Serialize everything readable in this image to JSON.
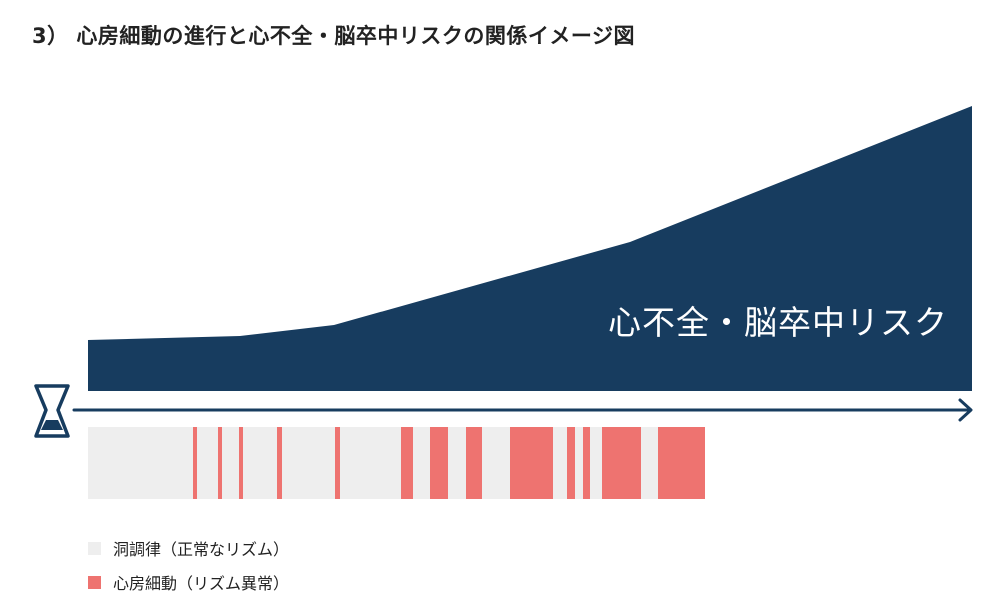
{
  "title": "3） 心房細動の進行と心不全・脳卒中リスクの関係イメージ図",
  "risk_label": "心不全・脳卒中リスク",
  "colors": {
    "risk_area": "#173c5f",
    "sinus": "#eeeeee",
    "af": "#ee7370",
    "arrow": "#173c5f",
    "hourglass": "#173c5f"
  },
  "icons": {
    "time": "hourglass-icon",
    "progression": "arrow-right-icon"
  },
  "rhythm_strip_segments_in_order": [
    "sinus",
    "af",
    "sinus",
    "af",
    "sinus",
    "af",
    "sinus",
    "af",
    "sinus",
    "af",
    "sinus",
    "af",
    "sinus",
    "af",
    "sinus",
    "af",
    "sinus",
    "af",
    "sinus",
    "af",
    "sinus",
    "af",
    "sinus",
    "af",
    "sinus",
    "af"
  ],
  "legend": {
    "items": [
      {
        "key": "sinus",
        "label": "洞調律（正常なリズム）"
      },
      {
        "key": "af",
        "label": "心房細動（リズム異常）"
      }
    ]
  }
}
